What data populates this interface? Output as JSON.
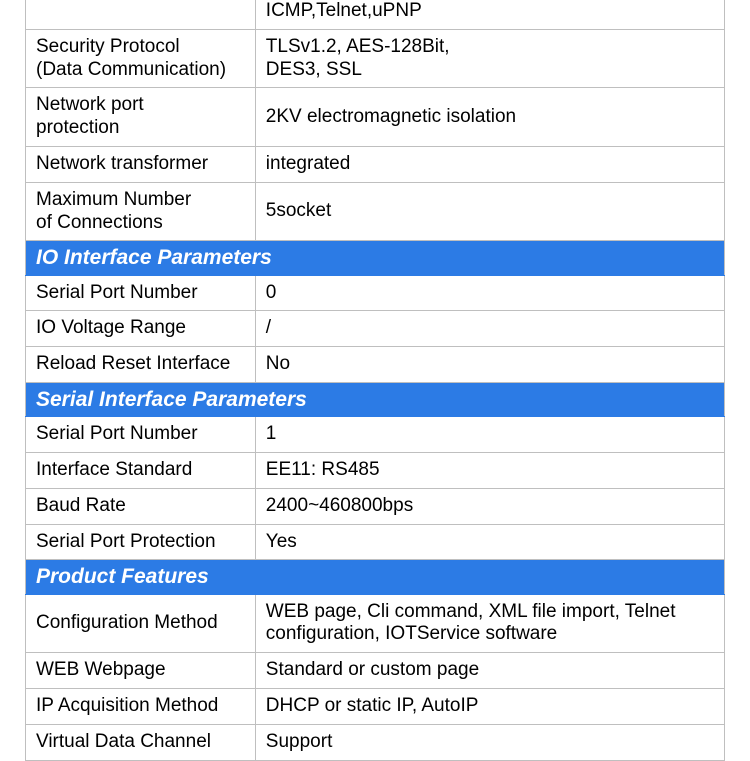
{
  "table": {
    "colors": {
      "header_bg": "#2c7be5",
      "header_fg": "#ffffff",
      "border": "#bfbfbf",
      "text": "#000000"
    },
    "partial_top": {
      "label": "",
      "value": "ICMP,Telnet,uPNP"
    },
    "pre_rows": [
      {
        "label": "Security Protocol\n(Data Communication)",
        "value": "TLSv1.2, AES-128Bit,\nDES3, SSL"
      },
      {
        "label": "Network port\nprotection",
        "value": "2KV electromagnetic isolation"
      },
      {
        "label": "Network transformer",
        "value": "integrated"
      },
      {
        "label": "Maximum Number\nof Connections",
        "value": "5socket"
      }
    ],
    "sections": [
      {
        "title": "IO Interface Parameters",
        "rows": [
          {
            "label": "Serial Port Number",
            "value": "0"
          },
          {
            "label": "IO Voltage Range",
            "value": "/"
          },
          {
            "label": "Reload Reset Interface",
            "value": "No"
          }
        ]
      },
      {
        "title": "Serial Interface Parameters",
        "rows": [
          {
            "label": "Serial Port Number",
            "value": "1"
          },
          {
            "label": "Interface Standard",
            "value": "EE11: RS485"
          },
          {
            "label": "Baud Rate",
            "value": "2400~460800bps"
          },
          {
            "label": "Serial Port Protection",
            "value": "Yes"
          }
        ]
      },
      {
        "title": "Product Features",
        "rows": [
          {
            "label": "Configuration Method",
            "value": "WEB page, Cli command, XML file import, Telnet configuration, IOTService software"
          },
          {
            "label": "WEB Webpage",
            "value": "Standard or custom page"
          },
          {
            "label": "IP Acquisition Method",
            "value": "DHCP or static IP, AutoIP"
          },
          {
            "label": "Virtual Data Channel",
            "value": "Support"
          }
        ]
      }
    ]
  }
}
